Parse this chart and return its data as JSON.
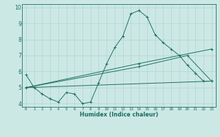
{
  "xlabel": "Humidex (Indice chaleur)",
  "bg_color": "#cce8e4",
  "grid_color": "#b0d4cf",
  "line_color": "#1a6e60",
  "xlim": [
    -0.5,
    23.5
  ],
  "ylim": [
    3.8,
    10.2
  ],
  "yticks": [
    4,
    5,
    6,
    7,
    8,
    9,
    10
  ],
  "xticks": [
    0,
    1,
    2,
    3,
    4,
    5,
    6,
    7,
    8,
    9,
    10,
    11,
    12,
    13,
    14,
    15,
    16,
    17,
    18,
    19,
    20,
    21,
    22,
    23
  ],
  "series": [
    {
      "x": [
        0,
        1,
        2,
        3,
        4,
        5,
        6,
        7,
        8,
        9,
        10,
        11,
        12,
        13,
        14,
        15,
        16,
        17,
        18,
        19,
        20,
        21,
        22,
        23
      ],
      "y": [
        5.8,
        5.0,
        4.6,
        4.3,
        4.1,
        4.7,
        4.6,
        4.0,
        4.1,
        5.3,
        6.5,
        7.5,
        8.2,
        9.6,
        9.8,
        9.4,
        8.3,
        7.8,
        7.4,
        7.0,
        6.4,
        5.9,
        5.4,
        5.4
      ]
    },
    {
      "x": [
        0,
        23
      ],
      "y": [
        5.0,
        5.4
      ]
    },
    {
      "x": [
        0,
        14,
        23
      ],
      "y": [
        5.0,
        6.5,
        7.4
      ]
    },
    {
      "x": [
        0,
        14,
        20,
        23
      ],
      "y": [
        5.0,
        6.3,
        7.0,
        5.4
      ]
    }
  ]
}
